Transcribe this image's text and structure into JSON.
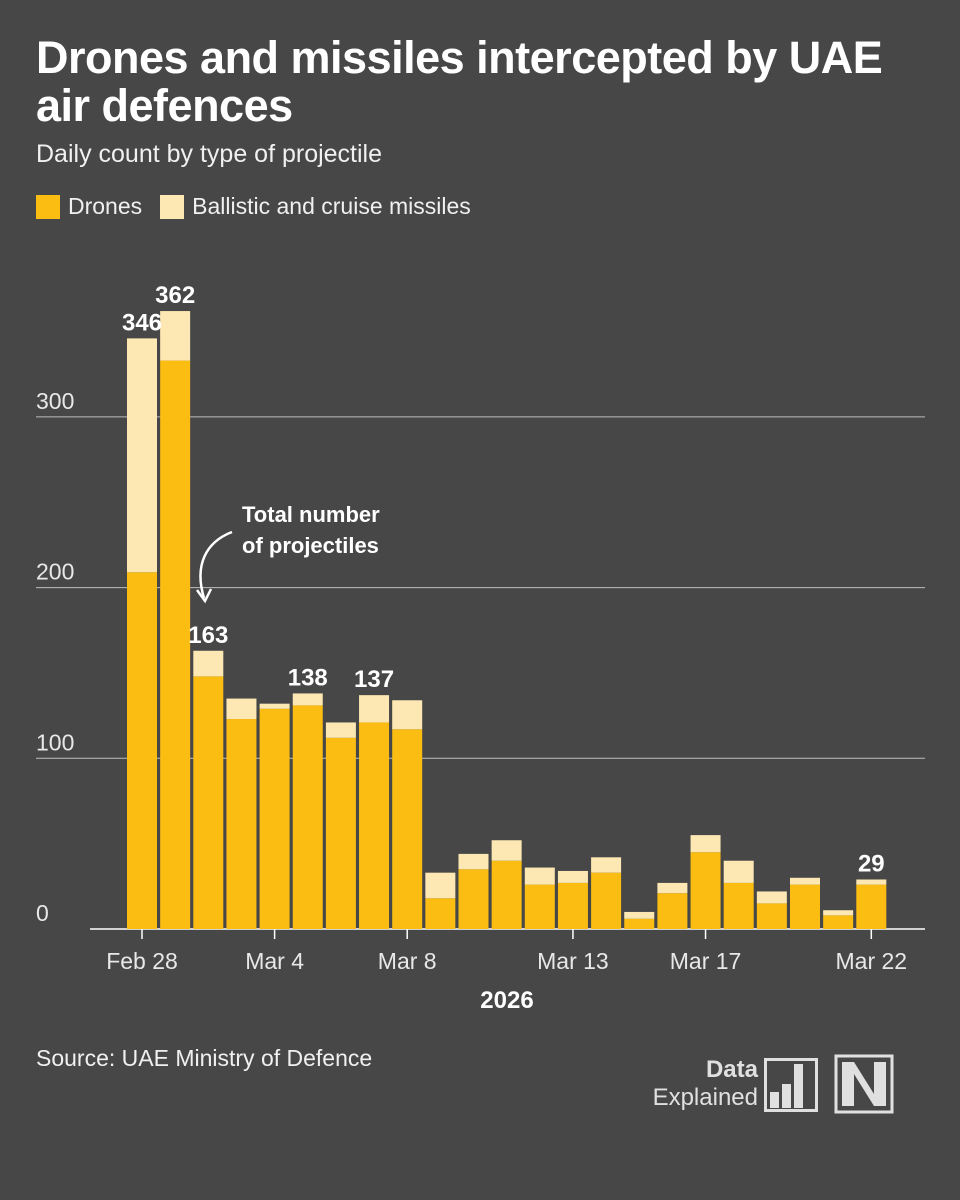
{
  "header": {
    "title": "Drones and missiles intercepted by UAE air defences",
    "subtitle": "Daily count by type of projectile"
  },
  "legend": {
    "drones_label": "Drones",
    "missiles_label": "Ballistic and cruise missiles"
  },
  "colors": {
    "background": "#474747",
    "drones": "#fbbd12",
    "missiles": "#fde8b4",
    "grid": "#bdbdbd"
  },
  "chart_data": {
    "type": "stacked-bar",
    "title": "Drones and missiles intercepted by UAE air defences",
    "xlabel": "2026",
    "ylabel": "",
    "ylim": [
      0,
      362
    ],
    "yticks": [
      0,
      100,
      200,
      300
    ],
    "categories": [
      "Feb 28",
      "Mar 1",
      "Mar 2",
      "Mar 3",
      "Mar 4",
      "Mar 5",
      "Mar 6",
      "Mar 7",
      "Mar 8",
      "Mar 9",
      "Mar 10",
      "Mar 11",
      "Mar 12",
      "Mar 13",
      "Mar 14",
      "Mar 15",
      "Mar 16",
      "Mar 17",
      "Mar 18",
      "Mar 19",
      "Mar 20",
      "Mar 21",
      "Mar 22"
    ],
    "x_tick_labels": [
      {
        "index": 0,
        "label": "Feb 28"
      },
      {
        "index": 4,
        "label": "Mar 4"
      },
      {
        "index": 8,
        "label": "Mar 8"
      },
      {
        "index": 13,
        "label": "Mar 13"
      },
      {
        "index": 17,
        "label": "Mar 17"
      },
      {
        "index": 22,
        "label": "Mar 22"
      }
    ],
    "series": [
      {
        "name": "Drones",
        "values": [
          209,
          333,
          148,
          123,
          129,
          131,
          112,
          121,
          117,
          18,
          35,
          40,
          26,
          27,
          33,
          6,
          21,
          45,
          27,
          15,
          26,
          8,
          26
        ]
      },
      {
        "name": "Ballistic and cruise missiles",
        "values": [
          137,
          29,
          15,
          12,
          3,
          7,
          9,
          16,
          17,
          15,
          9,
          12,
          10,
          7,
          9,
          4,
          6,
          10,
          13,
          7,
          4,
          3,
          3
        ]
      }
    ],
    "totals_labeled": [
      {
        "index": 0,
        "value": 346
      },
      {
        "index": 1,
        "value": 362
      },
      {
        "index": 2,
        "value": 163
      },
      {
        "index": 5,
        "value": 138
      },
      {
        "index": 7,
        "value": 137
      },
      {
        "index": 22,
        "value": 29
      }
    ],
    "annotation": {
      "line1": "Total number",
      "line2": "of projectiles"
    }
  },
  "footer": {
    "source": "Source: UAE Ministry of Defence",
    "logo_data": "Data",
    "logo_explained": "Explained"
  }
}
